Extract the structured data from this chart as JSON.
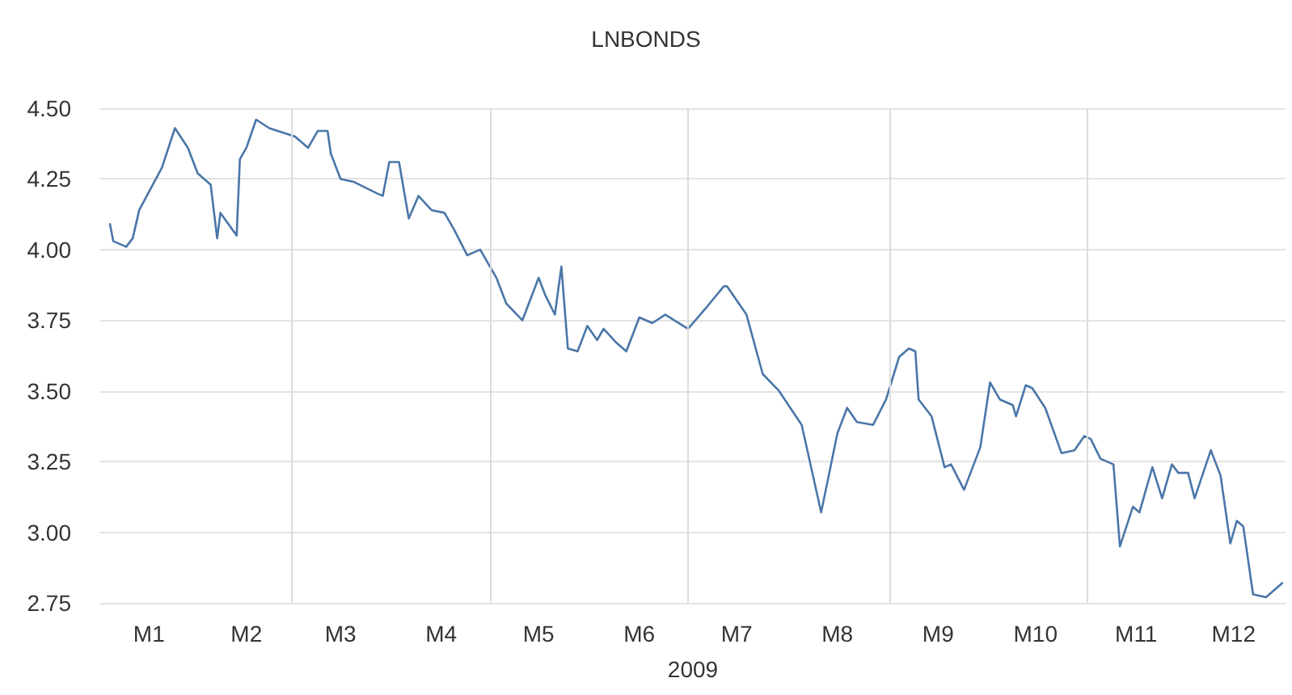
{
  "chart_data": {
    "type": "line",
    "title": "LNBONDS",
    "xlabel": "2009",
    "x": [
      "2009-01-04",
      "2009-01-05",
      "2009-01-09",
      "2009-01-11",
      "2009-01-13",
      "2009-01-20",
      "2009-01-24",
      "2009-01-28",
      "2009-01-31",
      "2009-02-04",
      "2009-02-06",
      "2009-02-07",
      "2009-02-12",
      "2009-02-13",
      "2009-02-15",
      "2009-02-18",
      "2009-02-22",
      "2009-03-02",
      "2009-03-06",
      "2009-03-09",
      "2009-03-12",
      "2009-03-13",
      "2009-03-16",
      "2009-03-20",
      "2009-03-27",
      "2009-03-29",
      "2009-03-31",
      "2009-04-03",
      "2009-04-06",
      "2009-04-09",
      "2009-04-13",
      "2009-04-17",
      "2009-04-20",
      "2009-04-24",
      "2009-04-28",
      "2009-05-03",
      "2009-05-06",
      "2009-05-11",
      "2009-05-16",
      "2009-05-18",
      "2009-05-21",
      "2009-05-23",
      "2009-05-25",
      "2009-05-28",
      "2009-05-31",
      "2009-06-03",
      "2009-06-05",
      "2009-06-09",
      "2009-06-12",
      "2009-06-16",
      "2009-06-20",
      "2009-06-24",
      "2009-07-01",
      "2009-07-07",
      "2009-07-12",
      "2009-07-13",
      "2009-07-19",
      "2009-07-24",
      "2009-07-29",
      "2009-08-05",
      "2009-08-11",
      "2009-08-16",
      "2009-08-19",
      "2009-08-22",
      "2009-08-27",
      "2009-08-31",
      "2009-09-04",
      "2009-09-07",
      "2009-09-09",
      "2009-09-10",
      "2009-09-14",
      "2009-09-18",
      "2009-09-20",
      "2009-09-24",
      "2009-09-29",
      "2009-10-02",
      "2009-10-05",
      "2009-10-09",
      "2009-10-10",
      "2009-10-13",
      "2009-10-15",
      "2009-10-19",
      "2009-10-24",
      "2009-10-28",
      "2009-10-31",
      "2009-11-02",
      "2009-11-05",
      "2009-11-09",
      "2009-11-11",
      "2009-11-15",
      "2009-11-17",
      "2009-11-21",
      "2009-11-24",
      "2009-11-27",
      "2009-11-29",
      "2009-12-02",
      "2009-12-04",
      "2009-12-09",
      "2009-12-12",
      "2009-12-15",
      "2009-12-17",
      "2009-12-19",
      "2009-12-22",
      "2009-12-26",
      "2009-12-31"
    ],
    "series": [
      {
        "color": "#4a76a8",
        "values": [
          4.09,
          4.03,
          4.01,
          4.04,
          4.14,
          4.29,
          4.43,
          4.36,
          4.27,
          4.23,
          4.04,
          4.13,
          4.05,
          4.32,
          4.36,
          4.46,
          4.43,
          4.4,
          4.36,
          4.42,
          4.42,
          4.34,
          4.25,
          4.24,
          4.2,
          4.19,
          4.31,
          4.31,
          4.11,
          4.19,
          4.14,
          4.13,
          4.07,
          3.98,
          4.0,
          3.9,
          3.81,
          3.75,
          3.9,
          3.84,
          3.77,
          3.94,
          3.65,
          3.64,
          3.73,
          3.68,
          3.72,
          3.67,
          3.64,
          3.76,
          3.74,
          3.77,
          3.72,
          3.8,
          3.87,
          3.87,
          3.77,
          3.56,
          3.5,
          3.38,
          3.07,
          3.35,
          3.44,
          3.39,
          3.38,
          3.47,
          3.62,
          3.65,
          3.64,
          3.47,
          3.41,
          3.23,
          3.24,
          3.15,
          3.3,
          3.53,
          3.47,
          3.45,
          3.41,
          3.52,
          3.51,
          3.44,
          3.28,
          3.29,
          3.34,
          3.33,
          3.26,
          3.24,
          2.95,
          3.09,
          3.07,
          3.23,
          3.12,
          3.24,
          3.21,
          3.21,
          3.12,
          3.29,
          3.2,
          2.96,
          3.04,
          3.02,
          2.78,
          2.77,
          2.82
        ]
      }
    ],
    "xlim": [
      "2009-01-01",
      "2010-01-01"
    ],
    "xticks": [
      {
        "value": "2009-01-16",
        "label": "M1"
      },
      {
        "value": "2009-02-15",
        "label": "M2"
      },
      {
        "value": "2009-03-16",
        "label": "M3"
      },
      {
        "value": "2009-04-16",
        "label": "M4"
      },
      {
        "value": "2009-05-16",
        "label": "M5"
      },
      {
        "value": "2009-06-16",
        "label": "M6"
      },
      {
        "value": "2009-07-16",
        "label": "M7"
      },
      {
        "value": "2009-08-16",
        "label": "M8"
      },
      {
        "value": "2009-09-16",
        "label": "M9"
      },
      {
        "value": "2009-10-16",
        "label": "M10"
      },
      {
        "value": "2009-11-16",
        "label": "M11"
      },
      {
        "value": "2009-12-16",
        "label": "M12"
      }
    ],
    "ylim": [
      2.75,
      4.5
    ],
    "yticks": [
      {
        "value": 2.75,
        "label": "2.75"
      },
      {
        "value": 3,
        "label": "3.00"
      },
      {
        "value": 3.25,
        "label": "3.25"
      },
      {
        "value": 3.5,
        "label": "3.50"
      },
      {
        "value": 3.75,
        "label": "3.75"
      },
      {
        "value": 4,
        "label": "4.00"
      },
      {
        "value": 4.25,
        "label": "4.25"
      },
      {
        "value": 4.5,
        "label": "4.50"
      }
    ],
    "grid": "y",
    "ref_lines": [
      {
        "axis": "x",
        "value": "2009-03-01",
        "color": "#dcdcdc"
      },
      {
        "axis": "x",
        "value": "2009-05-01",
        "color": "#dcdcdc"
      },
      {
        "axis": "x",
        "value": "2009-07-01",
        "color": "#dcdcdc"
      },
      {
        "axis": "x",
        "value": "2009-09-01",
        "color": "#dcdcdc"
      },
      {
        "axis": "x",
        "value": "2009-11-01",
        "color": "#dcdcdc"
      }
    ],
    "marker": "none",
    "line_style": "solid"
  }
}
